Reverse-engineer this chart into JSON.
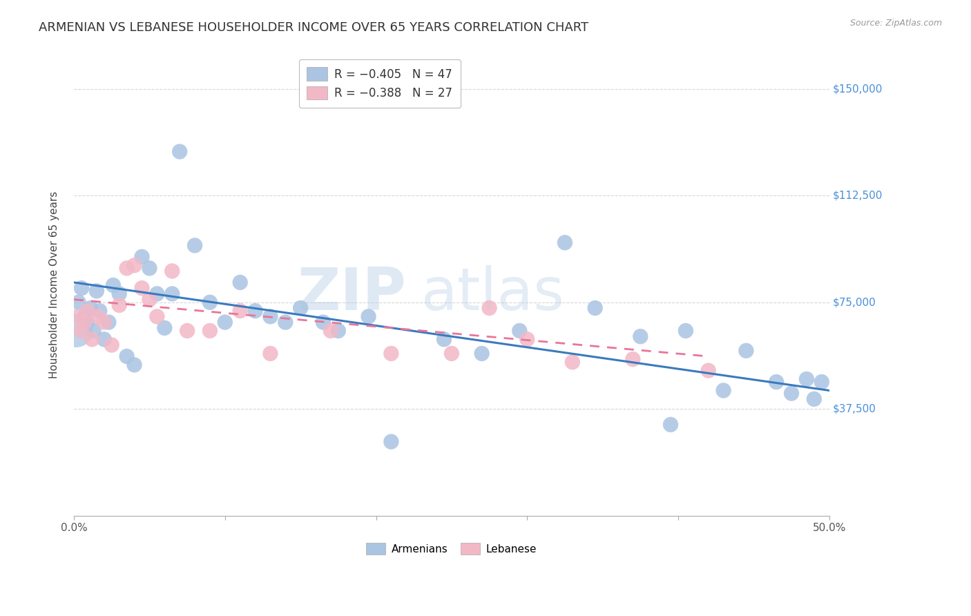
{
  "title": "ARMENIAN VS LEBANESE HOUSEHOLDER INCOME OVER 65 YEARS CORRELATION CHART",
  "source": "Source: ZipAtlas.com",
  "ylabel": "Householder Income Over 65 years",
  "xlim": [
    0.0,
    50.0
  ],
  "ylim": [
    0,
    162500
  ],
  "yticks": [
    37500,
    75000,
    112500,
    150000
  ],
  "ytick_labels": [
    "$37,500",
    "$75,000",
    "$112,500",
    "$150,000"
  ],
  "xticks": [
    0.0,
    10.0,
    20.0,
    30.0,
    40.0,
    50.0
  ],
  "xtick_labels": [
    "0.0%",
    "",
    "",
    "",
    "",
    "50.0%"
  ],
  "legend_r1": "R = -0.405",
  "legend_n1": "N = 47",
  "legend_r2": "R = -0.388",
  "legend_n2": "N = 27",
  "armenian_color": "#aac4e2",
  "lebanese_color": "#f2b8c6",
  "armenian_line_color": "#3a7abf",
  "lebanese_line_color": "#e8759a",
  "axis_label_color": "#4a90d9",
  "background_color": "#ffffff",
  "grid_color": "#cccccc",
  "watermark_zip": "ZIP",
  "watermark_atlas": "atlas",
  "title_fontsize": 13,
  "label_fontsize": 11,
  "tick_fontsize": 11,
  "source_fontsize": 9,
  "armenian_x": [
    0.3,
    0.5,
    0.7,
    0.9,
    1.1,
    1.3,
    1.5,
    1.7,
    2.0,
    2.3,
    2.6,
    3.0,
    3.5,
    4.0,
    4.5,
    5.0,
    5.5,
    6.0,
    6.5,
    7.0,
    8.0,
    9.0,
    10.0,
    11.0,
    12.0,
    13.0,
    14.0,
    15.0,
    16.5,
    17.5,
    19.5,
    21.0,
    24.5,
    27.0,
    29.5,
    32.5,
    34.5,
    37.5,
    39.5,
    40.5,
    43.0,
    44.5,
    46.5,
    47.5,
    48.5,
    49.0,
    49.5
  ],
  "armenian_y": [
    75000,
    80000,
    70000,
    68000,
    73000,
    65000,
    79000,
    72000,
    62000,
    68000,
    81000,
    78000,
    56000,
    53000,
    91000,
    87000,
    78000,
    66000,
    78000,
    128000,
    95000,
    75000,
    68000,
    82000,
    72000,
    70000,
    68000,
    73000,
    68000,
    65000,
    70000,
    26000,
    62000,
    57000,
    65000,
    96000,
    73000,
    63000,
    32000,
    65000,
    44000,
    58000,
    47000,
    43000,
    48000,
    41000,
    47000
  ],
  "lebanese_x": [
    0.3,
    0.5,
    0.7,
    0.9,
    1.2,
    1.6,
    2.0,
    2.5,
    3.0,
    3.5,
    4.0,
    4.5,
    5.0,
    5.5,
    6.5,
    7.5,
    9.0,
    11.0,
    13.0,
    17.0,
    21.0,
    25.0,
    27.5,
    30.0,
    33.0,
    37.0,
    42.0
  ],
  "lebanese_y": [
    70000,
    65000,
    68000,
    72000,
    62000,
    70000,
    68000,
    60000,
    74000,
    87000,
    88000,
    80000,
    76000,
    70000,
    86000,
    65000,
    65000,
    72000,
    57000,
    65000,
    57000,
    57000,
    73000,
    62000,
    54000,
    55000,
    51000
  ],
  "big_dot_x": 0.15,
  "big_dot_y": 65000,
  "big_dot_size": 1200,
  "arm_line_x0": 0.0,
  "arm_line_x1": 50.0,
  "arm_line_y0": 82000,
  "arm_line_y1": 44000,
  "leb_line_x0": 0.0,
  "leb_line_x1": 42.0,
  "leb_line_y0": 76000,
  "leb_line_y1": 56000
}
